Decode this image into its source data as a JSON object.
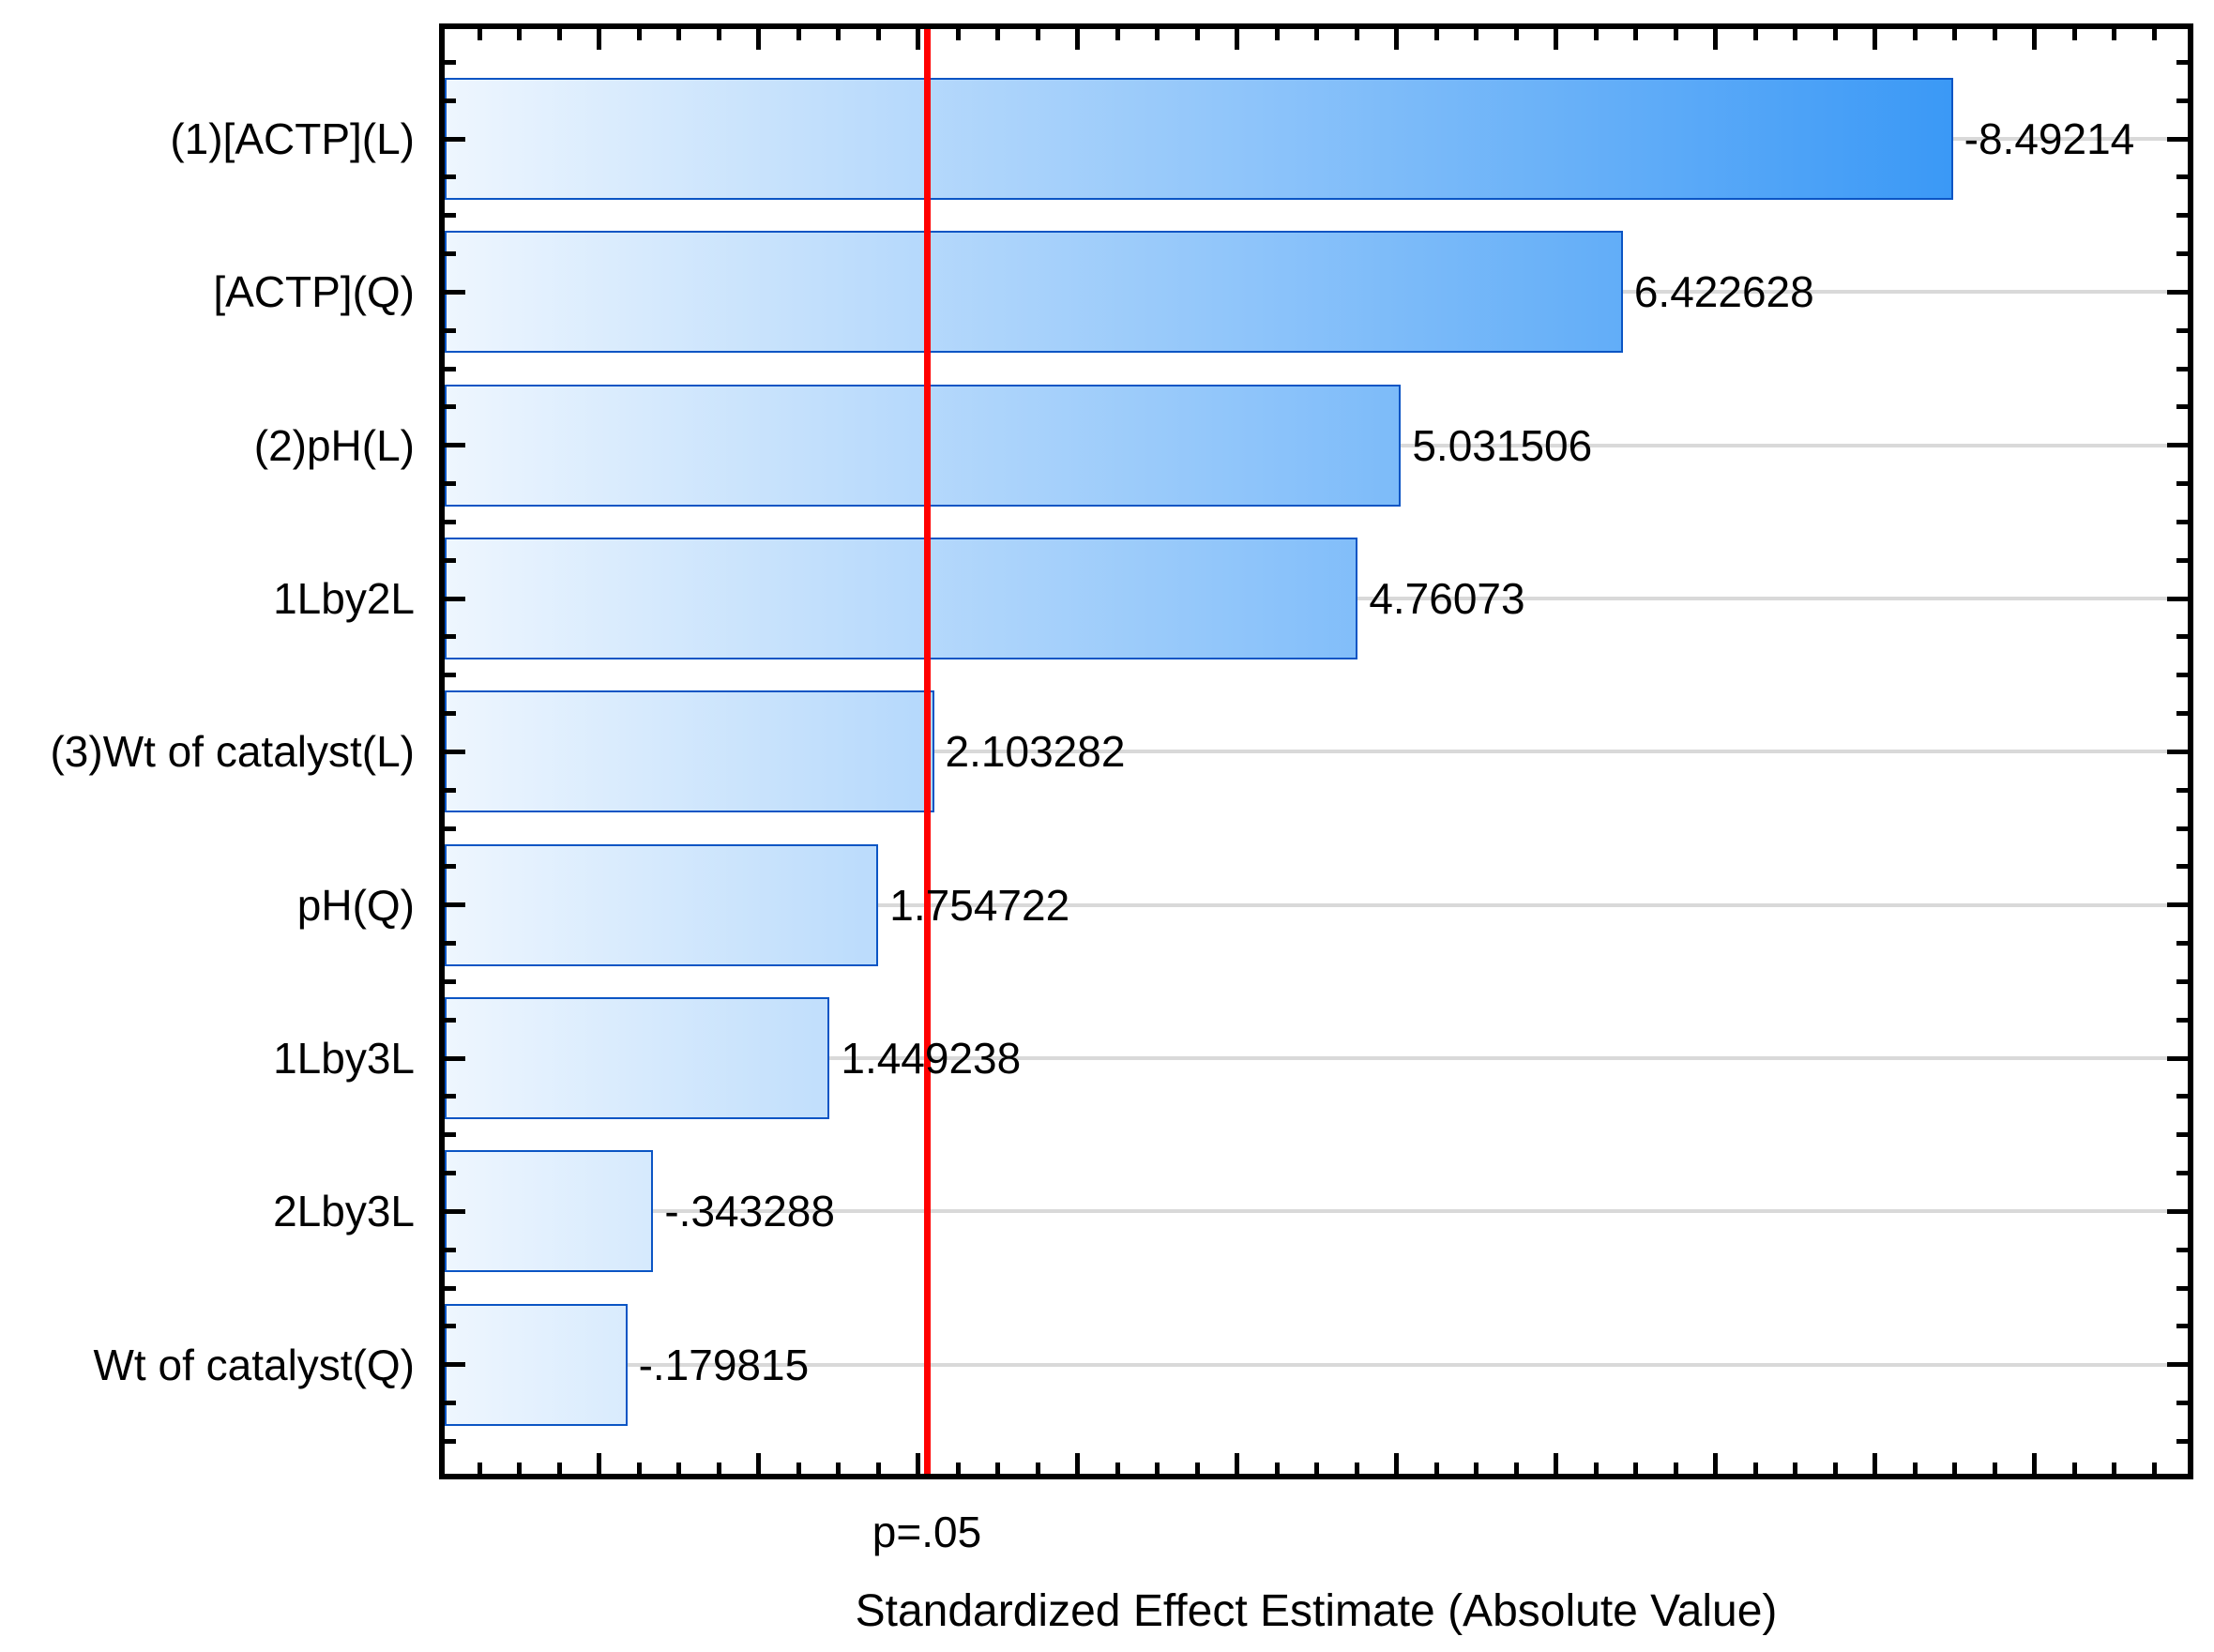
{
  "chart_data": {
    "type": "bar",
    "orientation": "horizontal-pareto",
    "title": "",
    "xlabel": "Standardized Effect Estimate (Absolute Value)",
    "ylabel": "",
    "categories": [
      "(1)[ACTP](L)",
      "[ACTP](Q)",
      "(2)pH(L)",
      "1Lby2L",
      "(3)Wt of catalyst(L)",
      "pH(Q)",
      "1Lby3L",
      "2Lby3L",
      "Wt of catalyst(Q)"
    ],
    "values": [
      -8.49214,
      6.422628,
      5.031506,
      4.76073,
      2.103282,
      1.754722,
      1.449238,
      -0.343288,
      -0.179815
    ],
    "value_labels": [
      "-8.49214",
      "6.422628",
      "5.031506",
      "4.76073",
      "2.103282",
      "1.754722",
      "1.449238",
      "-.343288",
      "-.179815"
    ],
    "bars_plot_absolute_values": true,
    "xlim": [
      -1,
      10
    ],
    "x_major_tick_step": 1,
    "x_minor_tick_step": 0.25,
    "grid": "horizontal-category-centers",
    "legend": "none",
    "significance_line": {
      "label": "p=.05",
      "value": 2.06,
      "color": "#ff0000"
    },
    "colors": {
      "bar_gradient_start": "#eef6fe",
      "bar_gradient_end": "#1e8af5",
      "bar_border": "#0b55c4",
      "gridline": "#d9d9d9",
      "axis": "#000000",
      "significance": "#ff0000",
      "background": "#ffffff",
      "text": "#000000"
    }
  }
}
